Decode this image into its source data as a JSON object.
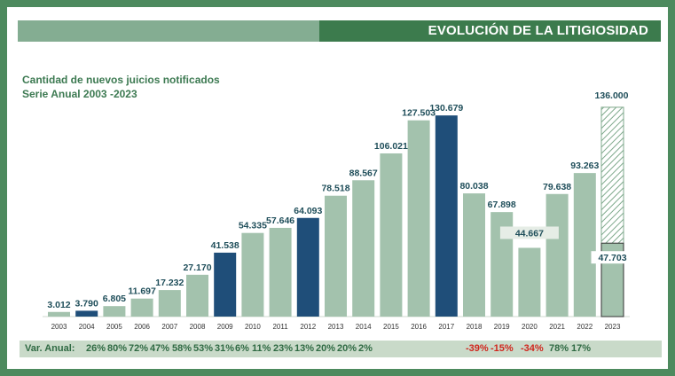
{
  "header": {
    "title": "EVOLUCIÓN DE LA LITIGIOSIDAD"
  },
  "chart_data": {
    "type": "bar",
    "title": "Cantidad de nuevos juicios notificados",
    "subtitle": "Serie Anual 2003 -2023",
    "categories": [
      "2003",
      "2004",
      "2005",
      "2006",
      "2007",
      "2008",
      "2009",
      "2010",
      "2011",
      "2012",
      "2013",
      "2014",
      "2015",
      "2016",
      "2017",
      "2018",
      "2019",
      "2020",
      "2021",
      "2022",
      "2023"
    ],
    "values": [
      3012,
      3790,
      6805,
      11697,
      17232,
      27170,
      41538,
      54335,
      57646,
      64093,
      78518,
      88567,
      106021,
      127503,
      130679,
      80038,
      67898,
      44667,
      79638,
      93263,
      47703
    ],
    "value_labels": [
      "3.012",
      "3.790",
      "6.805",
      "11.697",
      "17.232",
      "27.170",
      "41.538",
      "54.335",
      "57.646",
      "64.093",
      "78.518",
      "88.567",
      "106.021",
      "127.503",
      "130.679",
      "80.038",
      "67.898",
      "44.667",
      "79.638",
      "93.263",
      "47.703"
    ],
    "highlighted_years": [
      "2004",
      "2009",
      "2012",
      "2017"
    ],
    "projection": {
      "category": "2023",
      "value": 136000,
      "label": "136.000"
    },
    "ylim": [
      0,
      140000
    ],
    "grid": false,
    "colors": {
      "bar": "#a3c2ad",
      "highlight": "#1f4e79",
      "projection_hatch": "#7fa98c",
      "label": "#1f4e5a",
      "negative": "#d0261d"
    },
    "variation": {
      "label": "Var. Anual:",
      "values": [
        "26%",
        "80%",
        "72%",
        "47%",
        "58%",
        "53%",
        "31%",
        "6%",
        "11%",
        "23%",
        "13%",
        "20%",
        "20%",
        "2%",
        "-39%",
        "-15%",
        "-34%",
        "78%",
        "17%"
      ]
    }
  }
}
